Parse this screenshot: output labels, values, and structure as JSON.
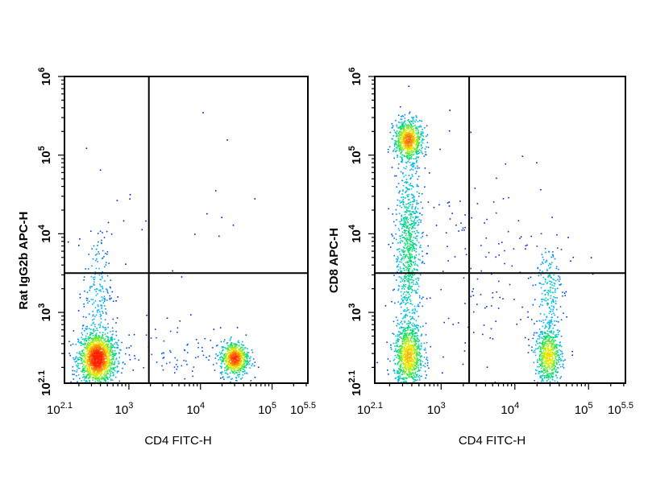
{
  "chart_data": [
    {
      "type": "scatter",
      "subtype": "flow-cytometry-density-dot-plot",
      "xlabel": "CD4 FITC-H",
      "ylabel": "Rat IgG2b APC-H",
      "xscale": "log",
      "yscale": "log",
      "xlim_log10": [
        2.1,
        5.5
      ],
      "ylim_log10": [
        2.1,
        6
      ],
      "x_ticks": [
        {
          "e": "2.1",
          "v": 2.1
        },
        {
          "e": "3",
          "v": 3
        },
        {
          "e": "4",
          "v": 4
        },
        {
          "e": "5",
          "v": 5
        },
        {
          "e": "5.5",
          "v": 5.5
        }
      ],
      "y_ticks": [
        {
          "e": "2.1",
          "v": 2.1
        },
        {
          "e": "3",
          "v": 3
        },
        {
          "e": "4",
          "v": 4
        },
        {
          "e": "5",
          "v": 5
        },
        {
          "e": "6",
          "v": 6
        }
      ],
      "quadrant_gate": {
        "x": 1900,
        "y": 3160
      },
      "populations_log10": [
        {
          "cx": 2.55,
          "cy": 2.42,
          "sx": 0.13,
          "sy": 0.17,
          "n": 1500
        },
        {
          "cx": 2.55,
          "cy": 3.3,
          "sx": 0.1,
          "sy": 0.35,
          "n": 180
        },
        {
          "cx": 4.47,
          "cy": 2.42,
          "sx": 0.1,
          "sy": 0.11,
          "n": 650
        },
        {
          "cx": 3.6,
          "cy": 2.5,
          "sx": 0.4,
          "sy": 0.2,
          "n": 90
        },
        {
          "cx": 3.5,
          "cy": 4.2,
          "sx": 0.8,
          "sy": 0.6,
          "n": 25
        }
      ],
      "color_scale": [
        "#0000c8",
        "#00b4ff",
        "#00e060",
        "#f0f000",
        "#ff2000"
      ]
    },
    {
      "type": "scatter",
      "subtype": "flow-cytometry-density-dot-plot",
      "xlabel": "CD4 FITC-H",
      "ylabel": "CD8 APC-H",
      "xscale": "log",
      "yscale": "log",
      "xlim_log10": [
        2.1,
        5.5
      ],
      "ylim_log10": [
        2.1,
        6
      ],
      "x_ticks": [
        {
          "e": "2.1",
          "v": 2.1
        },
        {
          "e": "3",
          "v": 3
        },
        {
          "e": "4",
          "v": 4
        },
        {
          "e": "5",
          "v": 5
        },
        {
          "e": "5.5",
          "v": 5.5
        }
      ],
      "y_ticks": [
        {
          "e": "2.1",
          "v": 2.1
        },
        {
          "e": "3",
          "v": 3
        },
        {
          "e": "4",
          "v": 4
        },
        {
          "e": "5",
          "v": 5
        },
        {
          "e": "6",
          "v": 6
        }
      ],
      "quadrant_gate": {
        "x": 2400,
        "y": 3160
      },
      "populations_log10": [
        {
          "cx": 2.55,
          "cy": 2.45,
          "sx": 0.1,
          "sy": 0.2,
          "n": 800
        },
        {
          "cx": 2.55,
          "cy": 5.2,
          "sx": 0.1,
          "sy": 0.13,
          "n": 650
        },
        {
          "cx": 2.55,
          "cy": 3.8,
          "sx": 0.09,
          "sy": 0.6,
          "n": 800
        },
        {
          "cx": 4.45,
          "cy": 2.45,
          "sx": 0.09,
          "sy": 0.18,
          "n": 600
        },
        {
          "cx": 4.45,
          "cy": 3.3,
          "sx": 0.09,
          "sy": 0.3,
          "n": 200
        },
        {
          "cx": 3.5,
          "cy": 3.5,
          "sx": 0.6,
          "sy": 0.8,
          "n": 160
        }
      ],
      "color_scale": [
        "#0000c8",
        "#00b4ff",
        "#00e060",
        "#f0f000",
        "#ff2000"
      ]
    }
  ]
}
